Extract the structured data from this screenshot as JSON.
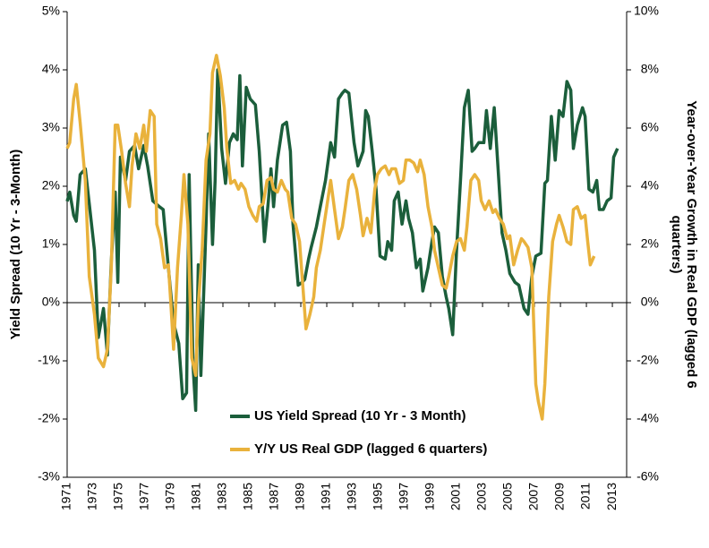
{
  "chart_data": {
    "type": "line",
    "ylabel": "Yield Spread (10 Yr - 3-Month)",
    "y2label": [
      "Year-over-Year Growth in Real GDP (lagged 6",
      "quarters)"
    ],
    "xlim": [
      1971,
      2014.1
    ],
    "xticks": [
      1971,
      1973,
      1975,
      1977,
      1979,
      1981,
      1983,
      1985,
      1987,
      1989,
      1991,
      1993,
      1995,
      1997,
      1999,
      2001,
      2003,
      2005,
      2007,
      2009,
      2011,
      2013
    ],
    "ylim": [
      -3,
      5
    ],
    "yticks": [
      {
        "value": 5,
        "label": "5%"
      },
      {
        "value": 4,
        "label": "4%"
      },
      {
        "value": 3,
        "label": "3%"
      },
      {
        "value": 2,
        "label": "2%"
      },
      {
        "value": 1,
        "label": "1%"
      },
      {
        "value": 0,
        "label": "0%"
      },
      {
        "value": -1,
        "label": "-1%"
      },
      {
        "value": -2,
        "label": "-2%"
      },
      {
        "value": -3,
        "label": "-3%"
      }
    ],
    "y2lim": [
      -6,
      10
    ],
    "y2ticks": [
      {
        "value": 10,
        "label": "10%"
      },
      {
        "value": 8,
        "label": "8%"
      },
      {
        "value": 6,
        "label": "6%"
      },
      {
        "value": 4,
        "label": "4%"
      },
      {
        "value": 2,
        "label": "2%"
      },
      {
        "value": 0,
        "label": "0%"
      },
      {
        "value": -2,
        "label": "-2%"
      },
      {
        "value": -4,
        "label": "-4%"
      },
      {
        "value": -6,
        "label": "-6%"
      }
    ],
    "legend": "lower center",
    "series": [
      {
        "name": "US Yield Spread (10 Yr - 3 Month)",
        "color": "#1b5e3b",
        "axis": "y",
        "x": [
          1971.0,
          1971.2,
          1971.5,
          1971.7,
          1972.0,
          1972.4,
          1972.7,
          1973.1,
          1973.4,
          1973.8,
          1974.1,
          1974.4,
          1974.7,
          1974.9,
          1975.1,
          1975.5,
          1975.8,
          1976.2,
          1976.5,
          1976.9,
          1977.2,
          1977.6,
          1978.1,
          1978.4,
          1978.8,
          1979.2,
          1979.6,
          1979.9,
          1980.2,
          1980.4,
          1980.7,
          1980.9,
          1981.1,
          1981.3,
          1981.7,
          1981.9,
          1982.2,
          1982.4,
          1982.6,
          1982.9,
          1983.2,
          1983.5,
          1983.8,
          1984.1,
          1984.3,
          1984.5,
          1984.8,
          1985.1,
          1985.5,
          1985.8,
          1986.2,
          1986.5,
          1986.7,
          1986.9,
          1987.2,
          1987.6,
          1987.9,
          1988.2,
          1988.4,
          1988.8,
          1989.1,
          1989.3,
          1989.6,
          1989.8,
          1990.2,
          1990.5,
          1990.9,
          1991.3,
          1991.6,
          1991.9,
          1992.2,
          1992.4,
          1992.7,
          1993.1,
          1993.4,
          1993.8,
          1994.0,
          1994.2,
          1994.5,
          1994.8,
          1995.1,
          1995.5,
          1995.7,
          1996.0,
          1996.2,
          1996.5,
          1996.8,
          1997.1,
          1997.3,
          1997.6,
          1997.9,
          1998.2,
          1998.4,
          1998.8,
          1999.1,
          1999.3,
          1999.6,
          1999.9,
          2000.2,
          2000.4,
          2000.7,
          2001.0,
          2001.3,
          2001.6,
          2001.9,
          2002.2,
          2002.4,
          2002.7,
          2003.1,
          2003.3,
          2003.6,
          2003.9,
          2004.2,
          2004.5,
          2004.8,
          2005.1,
          2005.5,
          2005.8,
          2006.2,
          2006.5,
          2006.8,
          2007.1,
          2007.5,
          2007.8,
          2008.0,
          2008.3,
          2008.6,
          2008.9,
          2009.2,
          2009.5,
          2009.8,
          2010.0,
          2010.3,
          2010.7,
          2010.9,
          2011.2,
          2011.5,
          2011.8,
          2012.0,
          2012.3,
          2012.6,
          2012.9,
          2013.1,
          2013.4
        ],
        "values": [
          1.74,
          1.9,
          1.5,
          1.4,
          2.2,
          2.3,
          1.7,
          0.9,
          -0.6,
          -0.1,
          -0.9,
          0.7,
          1.9,
          0.35,
          2.5,
          2.1,
          2.6,
          2.7,
          2.3,
          2.7,
          2.35,
          1.75,
          1.65,
          1.6,
          0.6,
          -0.35,
          -0.7,
          -1.65,
          -1.55,
          2.2,
          -1.1,
          -1.85,
          0.65,
          -1.25,
          1.35,
          2.9,
          1.0,
          2.1,
          4.0,
          2.65,
          2.05,
          2.75,
          2.9,
          2.8,
          3.9,
          2.35,
          3.7,
          3.5,
          3.4,
          2.6,
          1.05,
          1.75,
          2.3,
          1.65,
          2.45,
          3.05,
          3.1,
          2.6,
          1.35,
          0.3,
          0.35,
          0.4,
          0.75,
          0.95,
          1.3,
          1.65,
          2.1,
          2.75,
          2.5,
          3.5,
          3.6,
          3.65,
          3.6,
          2.75,
          2.35,
          2.6,
          3.3,
          3.2,
          2.6,
          1.95,
          0.8,
          0.75,
          1.05,
          0.9,
          1.75,
          1.9,
          1.35,
          1.75,
          1.45,
          1.2,
          0.6,
          0.75,
          0.2,
          0.6,
          1.05,
          1.3,
          1.2,
          0.45,
          0.1,
          -0.1,
          -0.55,
          0.9,
          2.1,
          3.35,
          3.65,
          2.6,
          2.65,
          2.75,
          2.75,
          3.3,
          2.65,
          3.35,
          2.3,
          1.2,
          0.9,
          0.5,
          0.35,
          0.3,
          -0.1,
          -0.2,
          0.45,
          0.8,
          0.85,
          2.05,
          2.1,
          3.2,
          2.45,
          3.3,
          3.2,
          3.8,
          3.65,
          2.65,
          3.05,
          3.35,
          3.2,
          1.95,
          1.9,
          2.1,
          1.6,
          1.6,
          1.75,
          1.8,
          2.5,
          2.65
        ]
      },
      {
        "name": "Y/Y US Real GDP (lagged 6 quarters)",
        "color": "#e9b23c",
        "axis": "y2",
        "x": [
          1971.0,
          1971.2,
          1971.5,
          1971.7,
          1972.0,
          1972.4,
          1972.7,
          1973.1,
          1973.4,
          1973.8,
          1974.1,
          1974.4,
          1974.7,
          1974.9,
          1975.2,
          1975.5,
          1975.8,
          1976.0,
          1976.3,
          1976.6,
          1976.9,
          1977.1,
          1977.4,
          1977.7,
          1977.9,
          1978.2,
          1978.5,
          1978.8,
          1979.0,
          1979.2,
          1979.5,
          1979.8,
          1980.0,
          1980.3,
          1980.6,
          1980.9,
          1981.1,
          1981.4,
          1981.7,
          1982.0,
          1982.2,
          1982.5,
          1982.8,
          1983.1,
          1983.3,
          1983.6,
          1983.9,
          1984.2,
          1984.4,
          1984.7,
          1985.0,
          1985.3,
          1985.6,
          1985.8,
          1986.1,
          1986.4,
          1986.7,
          1986.9,
          1987.2,
          1987.5,
          1987.8,
          1988.0,
          1988.3,
          1988.6,
          1988.9,
          1989.1,
          1989.4,
          1989.7,
          1990.0,
          1990.2,
          1990.5,
          1990.8,
          1991.1,
          1991.3,
          1991.6,
          1991.9,
          1992.2,
          1992.4,
          1992.7,
          1993.0,
          1993.3,
          1993.6,
          1993.8,
          1994.1,
          1994.4,
          1994.7,
          1994.9,
          1995.2,
          1995.5,
          1995.8,
          1996.0,
          1996.3,
          1996.6,
          1996.9,
          1997.1,
          1997.4,
          1997.7,
          1998.0,
          1998.2,
          1998.5,
          1998.8,
          1999.1,
          1999.3,
          1999.6,
          1999.9,
          2000.2,
          2000.4,
          2000.7,
          2001.0,
          2001.3,
          2001.6,
          2001.8,
          2002.1,
          2002.4,
          2002.7,
          2002.9,
          2003.2,
          2003.5,
          2003.8,
          2004.0,
          2004.3,
          2004.6,
          2004.9,
          2005.1,
          2005.4,
          2005.7,
          2006.0,
          2006.2,
          2006.5,
          2006.8,
          2007.1,
          2007.3,
          2007.6,
          2007.8,
          2008.1,
          2008.4,
          2008.7,
          2008.9,
          2009.2,
          2009.5,
          2009.8,
          2010.0,
          2010.3,
          2010.6,
          2010.9,
          2011.1,
          2011.3,
          2011.6
        ],
        "values": [
          5.3,
          5.5,
          7.0,
          7.5,
          6.2,
          4.2,
          0.9,
          -0.4,
          -1.9,
          -2.2,
          -1.6,
          1.2,
          6.1,
          6.1,
          5.2,
          4.1,
          3.3,
          4.7,
          5.8,
          5.3,
          6.1,
          5.2,
          6.6,
          6.4,
          2.7,
          2.2,
          1.2,
          1.3,
          -0.1,
          -1.6,
          1.2,
          3.0,
          4.4,
          2.7,
          -1.9,
          -2.5,
          -0.1,
          1.8,
          4.9,
          5.8,
          7.9,
          8.5,
          7.8,
          6.7,
          5.3,
          4.1,
          4.2,
          3.9,
          4.1,
          3.9,
          3.3,
          3.0,
          2.8,
          3.3,
          3.4,
          4.2,
          4.3,
          3.9,
          3.8,
          4.2,
          3.9,
          3.8,
          2.9,
          2.7,
          2.1,
          0.9,
          -0.9,
          -0.4,
          0.2,
          1.2,
          1.8,
          2.7,
          3.6,
          4.2,
          3.2,
          2.2,
          2.6,
          3.2,
          4.2,
          4.4,
          3.9,
          3.0,
          2.3,
          2.9,
          2.4,
          3.9,
          4.4,
          4.6,
          4.7,
          4.4,
          4.6,
          4.6,
          4.1,
          4.2,
          4.9,
          4.9,
          4.8,
          4.5,
          4.9,
          4.4,
          3.3,
          2.6,
          1.8,
          1.2,
          0.6,
          0.5,
          0.9,
          1.6,
          2.1,
          2.2,
          1.8,
          2.6,
          4.2,
          4.4,
          4.2,
          3.5,
          3.2,
          3.5,
          3.1,
          3.2,
          2.9,
          2.7,
          2.2,
          2.3,
          1.3,
          1.8,
          2.2,
          2.1,
          1.9,
          1.2,
          -2.8,
          -3.4,
          -4.0,
          -2.8,
          0.2,
          2.1,
          2.7,
          3.0,
          2.6,
          2.1,
          2.0,
          3.2,
          3.3,
          2.9,
          3.0,
          2.1,
          1.3,
          1.6
        ]
      }
    ]
  }
}
